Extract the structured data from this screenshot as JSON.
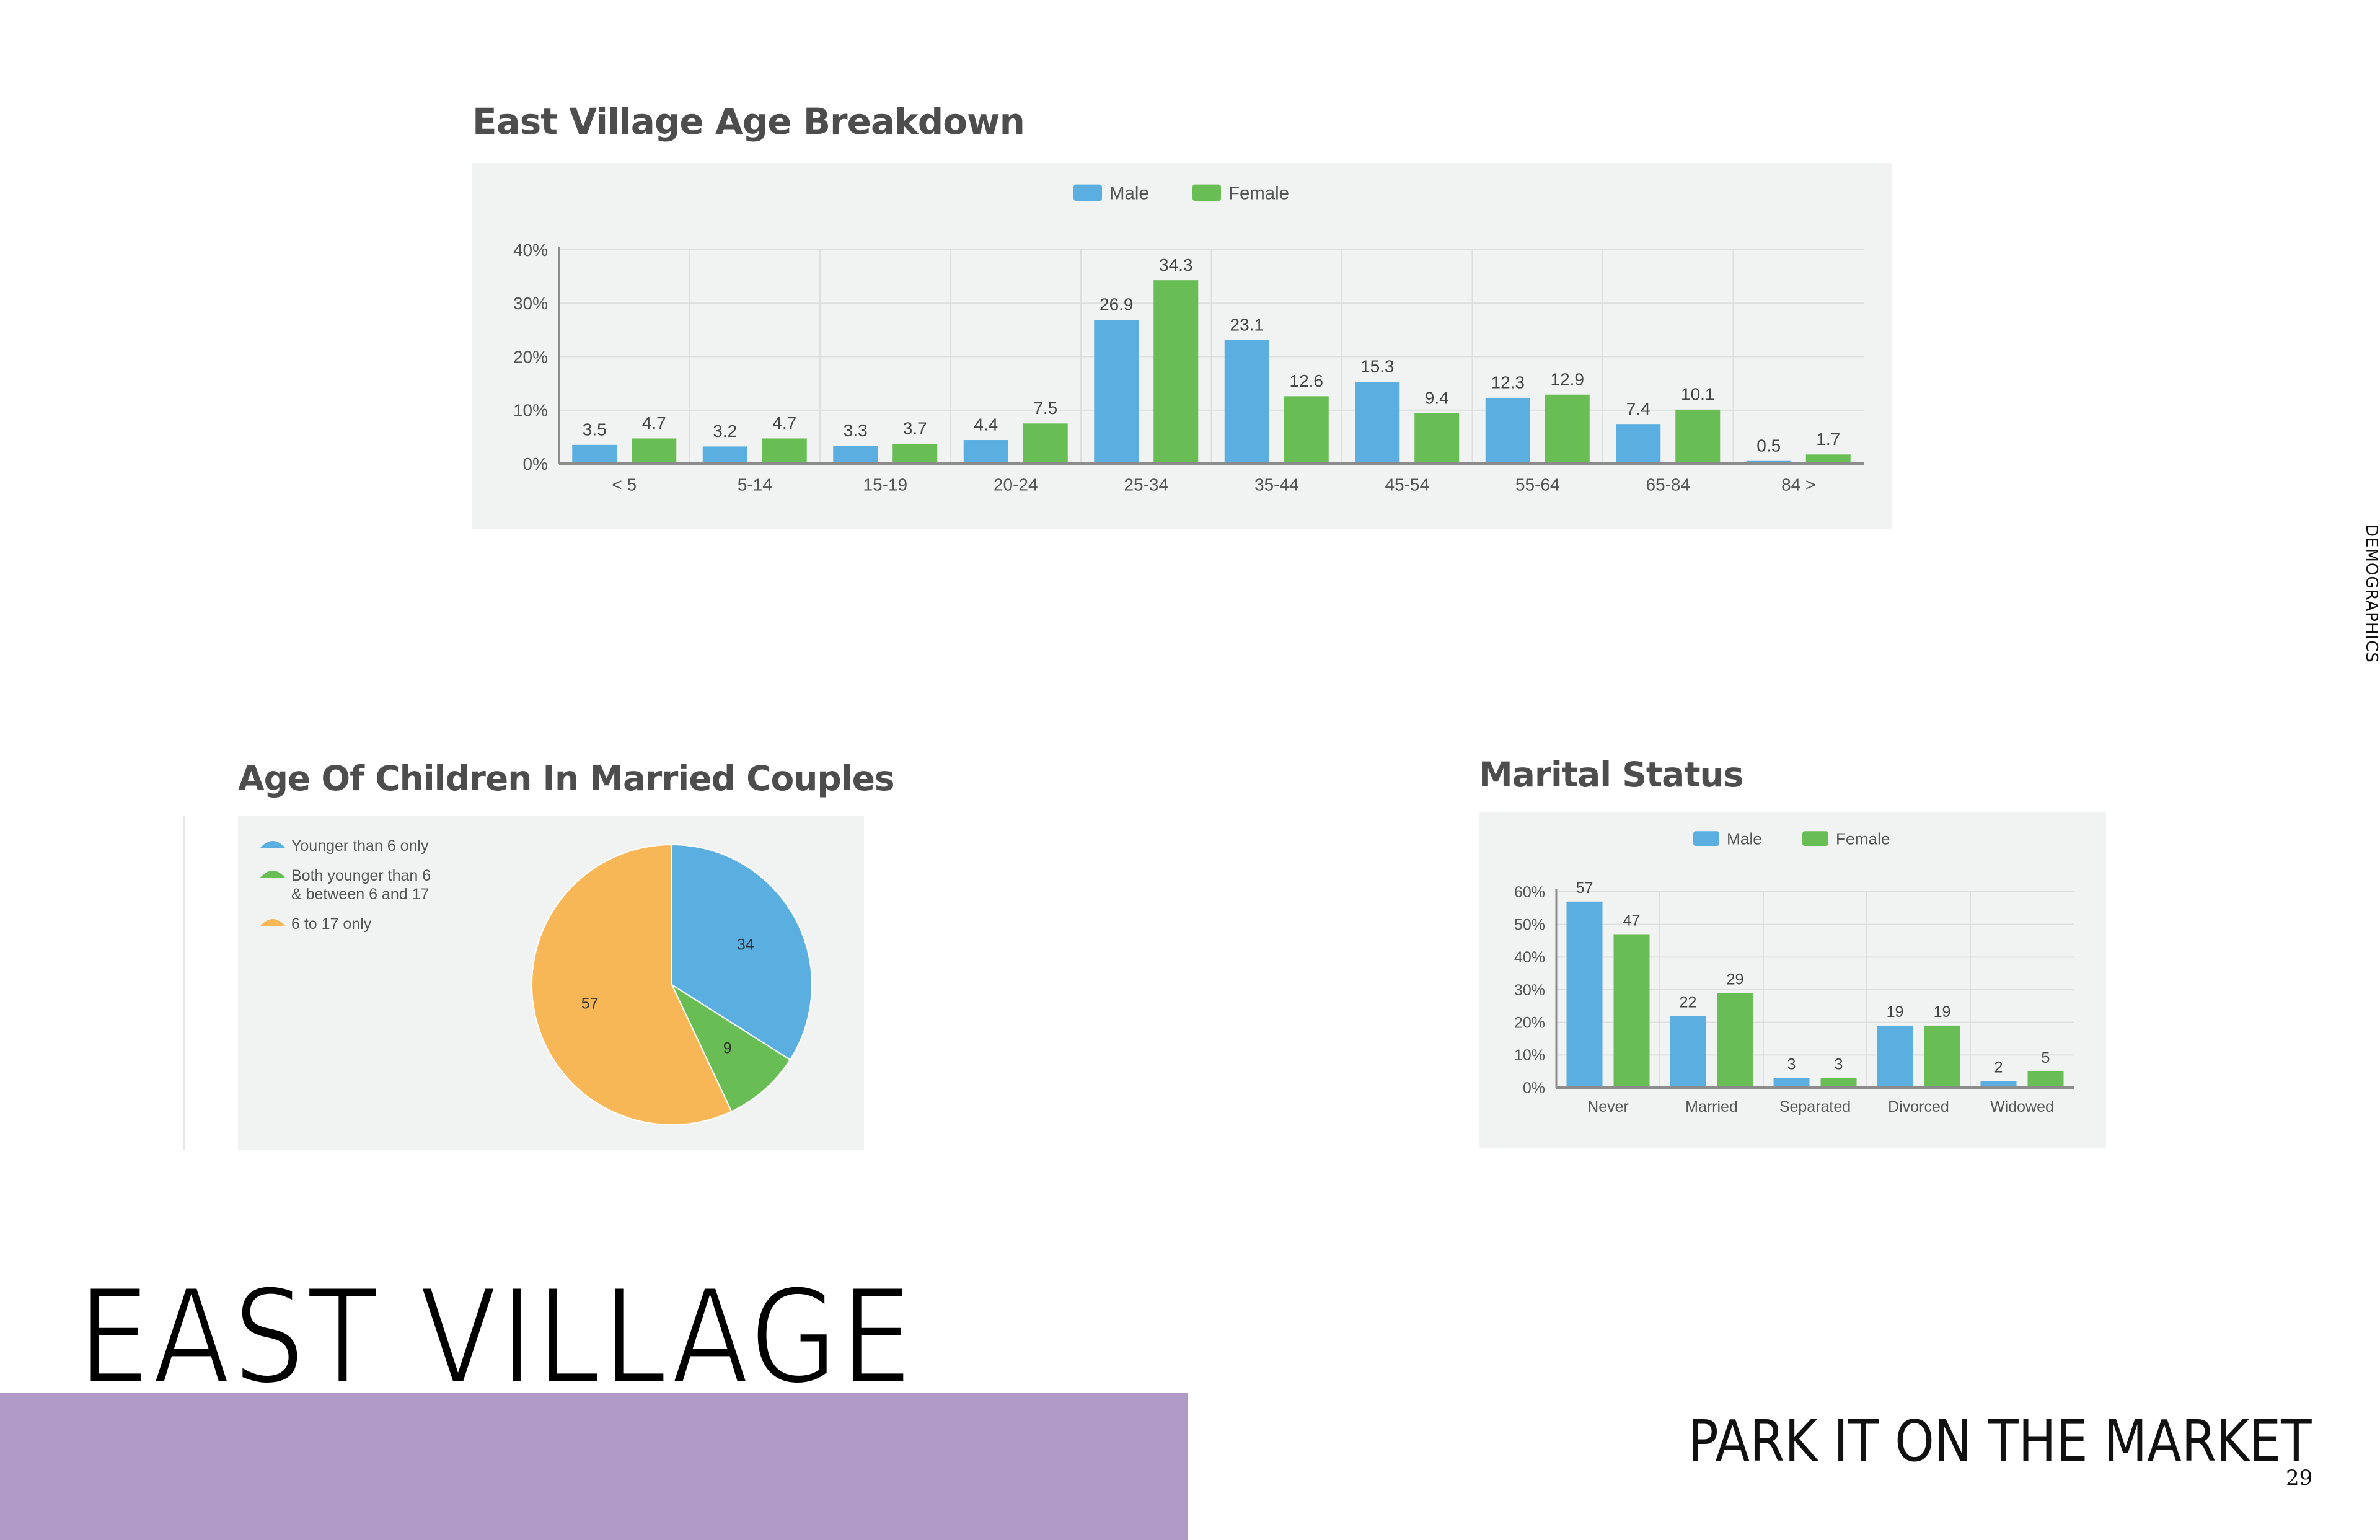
{
  "side_label": "DEMOGRAPHICS",
  "hero_title": "EAST VILLAGE",
  "brand": "PARK IT ON THE MARKET",
  "page_number": "29",
  "colors": {
    "male": "#5aafe0",
    "female": "#69bd55",
    "orange": "#f8b757",
    "panel_bg": "#f1f2f2",
    "band": "#af9ac7"
  },
  "chart_data": [
    {
      "type": "bar",
      "title": "East Village Age Breakdown",
      "categories": [
        "< 5",
        "5-14",
        "15-19",
        "20-24",
        "25-34",
        "35-44",
        "45-54",
        "55-64",
        "65-84",
        "84 >"
      ],
      "series": [
        {
          "name": "Male",
          "values": [
            3.5,
            3.2,
            3.3,
            4.4,
            26.9,
            23.1,
            15.3,
            12.3,
            7.4,
            0.5
          ]
        },
        {
          "name": "Female",
          "values": [
            4.7,
            4.7,
            3.7,
            7.5,
            34.3,
            12.6,
            9.4,
            12.9,
            10.1,
            1.7
          ]
        }
      ],
      "ylim": [
        0,
        40
      ],
      "yticks": [
        "0%",
        "10%",
        "20%",
        "30%",
        "40%"
      ],
      "legend_position": "top-center",
      "grid": true
    },
    {
      "type": "pie",
      "title": "Age Of Children In Married Couples",
      "labels": [
        "Younger than 6 only",
        "Both younger than 6 & between 6 and 17",
        "6 to 17 only"
      ],
      "legend_lines": [
        [
          "Younger than 6 only"
        ],
        [
          "Both younger than 6",
          "& between 6 and 17"
        ],
        [
          "6 to 17 only"
        ]
      ],
      "values": [
        34,
        9,
        57
      ],
      "legend_position": "top-left"
    },
    {
      "type": "bar",
      "title": "Marital Status",
      "categories": [
        "Never",
        "Married",
        "Separated",
        "Divorced",
        "Widowed"
      ],
      "series": [
        {
          "name": "Male",
          "values": [
            57,
            22,
            3,
            19,
            2
          ]
        },
        {
          "name": "Female",
          "values": [
            47,
            29,
            3,
            19,
            5
          ]
        }
      ],
      "ylim": [
        0,
        60
      ],
      "yticks": [
        "0%",
        "10%",
        "20%",
        "30%",
        "40%",
        "50%",
        "60%"
      ],
      "legend_position": "top-center",
      "grid": true
    }
  ]
}
